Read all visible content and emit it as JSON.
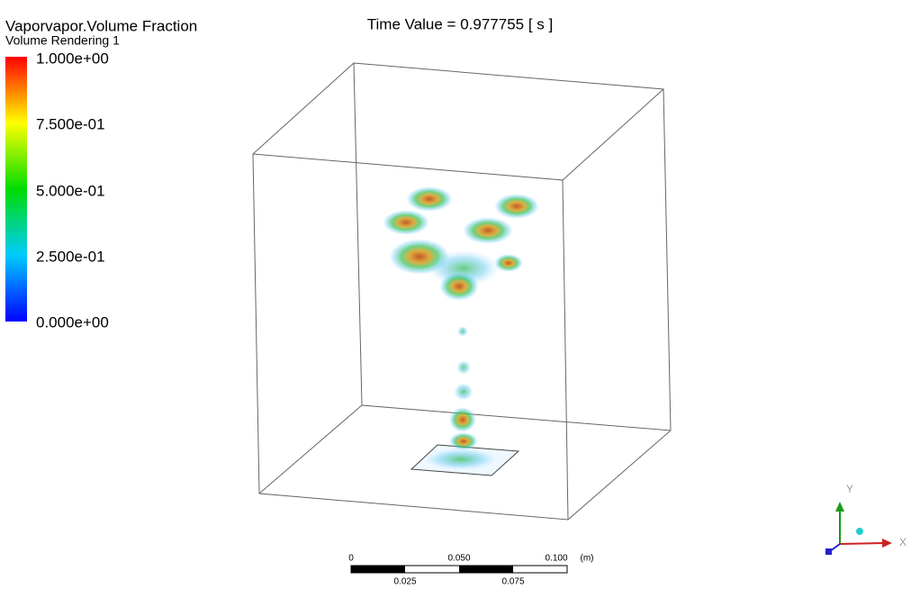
{
  "legend": {
    "title": "Vaporvapor.Volume Fraction",
    "subtitle": "Volume Rendering 1",
    "labels": [
      "1.000e+00",
      "7.500e-01",
      "5.000e-01",
      "2.500e-01",
      "0.000e+00"
    ]
  },
  "time": "Time Value = 0.977755 [ s ]",
  "scale_bar": {
    "top_labels": [
      "0",
      "0.050",
      "0.100"
    ],
    "unit": "(m)",
    "bottom_labels": [
      "0.025",
      "0.075"
    ]
  },
  "axes": {
    "y": "Y",
    "x": "X"
  }
}
